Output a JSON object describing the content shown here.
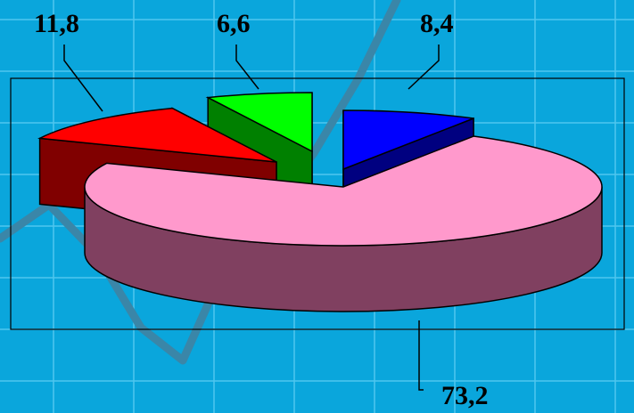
{
  "chart_data": {
    "type": "pie",
    "three_d": true,
    "exploded": true,
    "title": "",
    "labels": [
      "73,2",
      "11,8",
      "6,6",
      "8,4"
    ],
    "values": [
      73.2,
      11.8,
      6.6,
      8.4
    ],
    "colors": {
      "slice_tops": [
        "#ff99cc",
        "#ff0000",
        "#00ff00",
        "#0000ff"
      ],
      "slice_sides": [
        "#804060",
        "#800000",
        "#008000",
        "#000080"
      ],
      "background": "#0aa6dc",
      "grid_lines": "#4fc6ee",
      "decorative_trend_line": "#3a86a8"
    },
    "plot_frame": true,
    "legend": "none"
  }
}
